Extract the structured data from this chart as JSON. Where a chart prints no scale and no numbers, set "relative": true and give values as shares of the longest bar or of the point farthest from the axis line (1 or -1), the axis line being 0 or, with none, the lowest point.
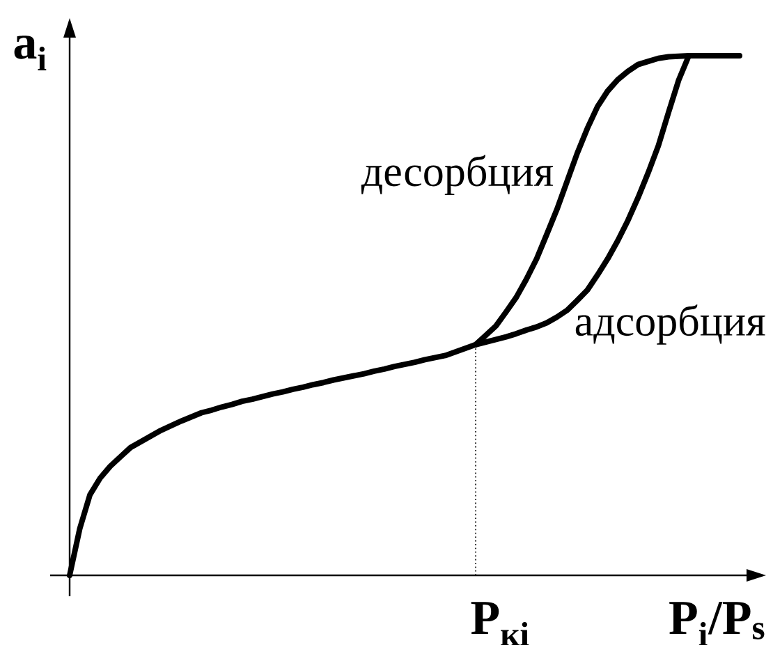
{
  "chart_data": {
    "type": "line",
    "relative": true,
    "xlabel": "P$_{i}$/P$_{s}$",
    "ylabel": "a$_{i}$",
    "categories": [
      null,
      null,
      null,
      null,
      null,
      null,
      null,
      null,
      null,
      null,
      null,
      null,
      null,
      null,
      null,
      null,
      null,
      null,
      null,
      null,
      null,
      null,
      null,
      null,
      null,
      null,
      null,
      null,
      null,
      null,
      null,
      null,
      null,
      null,
      null,
      null,
      null,
      null,
      null,
      null,
      null,
      null,
      null,
      null,
      null,
      null,
      null,
      null,
      null,
      null,
      null,
      null,
      null,
      null,
      null,
      null,
      null,
      null,
      null,
      null,
      null,
      null,
      null,
      null,
      null,
      null,
      null
    ],
    "series": [
      {
        "name": "адсорбция",
        "color": "#000000",
        "values": [
          0,
          0.09,
          0.155,
          0.187,
          0.21,
          0.228,
          0.246,
          0.257,
          0.268,
          0.279,
          0.288,
          0.297,
          0.305,
          0.313,
          0.318,
          0.324,
          0.329,
          0.335,
          0.339,
          0.344,
          0.349,
          0.353,
          0.358,
          0.362,
          0.367,
          0.371,
          0.376,
          0.38,
          0.384,
          0.388,
          0.393,
          0.397,
          0.402,
          0.406,
          0.41,
          0.415,
          0.419,
          0.423,
          0.43,
          0.437,
          0.444,
          0.449,
          0.454,
          0.459,
          0.465,
          0.472,
          0.478,
          0.486,
          0.497,
          0.51,
          0.529,
          0.549,
          0.578,
          0.609,
          0.644,
          0.683,
          0.727,
          0.775,
          0.827,
          0.891,
          0.953,
          1,
          1,
          1,
          1,
          1,
          1
        ]
      },
      {
        "name": "десорбция",
        "color": "#000000",
        "values": [
          null,
          null,
          null,
          null,
          null,
          null,
          null,
          null,
          null,
          null,
          null,
          null,
          null,
          null,
          null,
          null,
          null,
          null,
          null,
          null,
          null,
          null,
          null,
          null,
          null,
          null,
          null,
          null,
          null,
          null,
          null,
          null,
          null,
          null,
          null,
          null,
          null,
          null,
          null,
          null,
          0.444,
          0.462,
          0.48,
          0.507,
          0.535,
          0.57,
          0.609,
          0.656,
          0.704,
          0.758,
          0.812,
          0.86,
          0.902,
          0.932,
          0.954,
          0.97,
          0.983,
          0.989,
          0.995,
          0.998,
          0.999,
          1,
          null,
          null,
          null,
          null,
          null
        ]
      }
    ],
    "annotations": [
      "P$_{кi}$"
    ]
  }
}
